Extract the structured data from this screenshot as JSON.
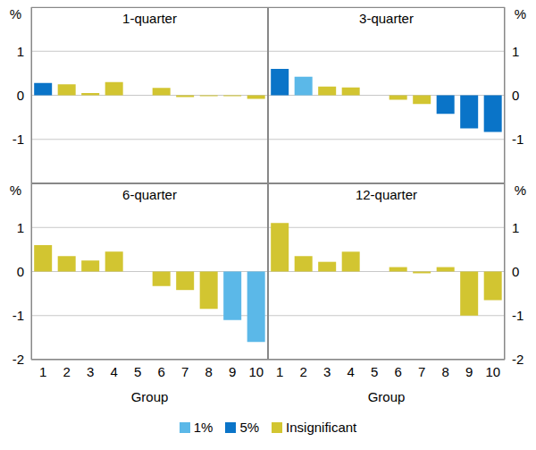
{
  "chart_data": [
    {
      "type": "bar",
      "title": "1-quarter",
      "ylabel": "%",
      "ylim": [
        -2,
        2
      ],
      "yticks": [
        -1,
        0,
        1
      ],
      "grid": true,
      "stacked": true,
      "tick_labels": "y",
      "legend": "bottom",
      "series": [
        {
          "name": "1%",
          "color": "#5bb8e8",
          "values": [
            null,
            null,
            null,
            null,
            null,
            null,
            null,
            null,
            null,
            null
          ]
        },
        {
          "name": "5%",
          "color": "#0a74c8",
          "values": [
            0.28,
            null,
            null,
            null,
            null,
            null,
            null,
            null,
            null,
            null
          ]
        },
        {
          "name": "Insignificant",
          "color": "#d2c531",
          "values": [
            null,
            0.25,
            0.05,
            0.3,
            null,
            0.17,
            -0.04,
            -0.02,
            -0.02,
            -0.08
          ]
        }
      ]
    },
    {
      "type": "bar",
      "title": "3-quarter",
      "ylabel": "%",
      "ylim": [
        -2,
        2
      ],
      "yticks": [
        -1,
        0,
        1
      ],
      "grid": true,
      "stacked": true,
      "tick_labels": "y",
      "series": [
        {
          "name": "1%",
          "color": "#5bb8e8",
          "values": [
            null,
            0.42,
            null,
            null,
            null,
            null,
            null,
            null,
            null,
            null
          ]
        },
        {
          "name": "5%",
          "color": "#0a74c8",
          "values": [
            0.6,
            null,
            null,
            null,
            null,
            null,
            null,
            -0.42,
            -0.75,
            -0.83
          ]
        },
        {
          "name": "Insignificant",
          "color": "#d2c531",
          "values": [
            null,
            null,
            0.2,
            0.18,
            null,
            -0.1,
            -0.2,
            null,
            null,
            null
          ]
        }
      ]
    },
    {
      "type": "bar",
      "title": "6-quarter",
      "ylabel": "%",
      "xlabel": "Group",
      "categories": [
        "1",
        "2",
        "3",
        "4",
        "5",
        "6",
        "7",
        "8",
        "9",
        "10"
      ],
      "ylim": [
        -2,
        2
      ],
      "yticks": [
        -2,
        -1,
        0,
        1
      ],
      "grid": true,
      "stacked": true,
      "series": [
        {
          "name": "1%",
          "color": "#5bb8e8",
          "values": [
            null,
            null,
            null,
            null,
            null,
            null,
            null,
            null,
            -1.1,
            -1.6
          ]
        },
        {
          "name": "5%",
          "color": "#0a74c8",
          "values": [
            null,
            null,
            null,
            null,
            null,
            null,
            null,
            null,
            null,
            null
          ]
        },
        {
          "name": "Insignificant",
          "color": "#d2c531",
          "values": [
            0.6,
            0.35,
            0.25,
            0.45,
            null,
            -0.33,
            -0.42,
            -0.85,
            null,
            null
          ]
        }
      ]
    },
    {
      "type": "bar",
      "title": "12-quarter",
      "ylabel": "%",
      "xlabel": "Group",
      "categories": [
        "1",
        "2",
        "3",
        "4",
        "5",
        "6",
        "7",
        "8",
        "9",
        "10"
      ],
      "ylim": [
        -2,
        2
      ],
      "yticks": [
        -2,
        -1,
        0,
        1
      ],
      "grid": true,
      "stacked": true,
      "series": [
        {
          "name": "1%",
          "color": "#5bb8e8",
          "values": [
            null,
            null,
            null,
            null,
            null,
            null,
            null,
            null,
            null,
            null
          ]
        },
        {
          "name": "5%",
          "color": "#0a74c8",
          "values": [
            null,
            null,
            null,
            null,
            null,
            null,
            null,
            null,
            null,
            null
          ]
        },
        {
          "name": "Insignificant",
          "color": "#d2c531",
          "values": [
            1.1,
            0.35,
            0.22,
            0.45,
            null,
            0.1,
            -0.04,
            0.1,
            -1.0,
            -0.65
          ]
        }
      ]
    }
  ]
}
